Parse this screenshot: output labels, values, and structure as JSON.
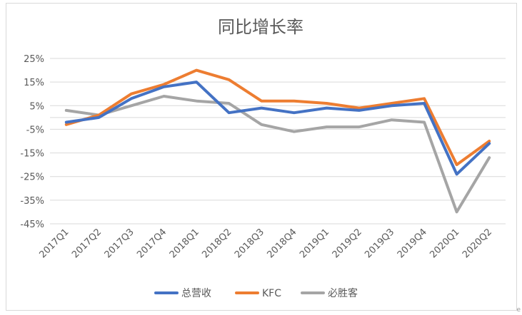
{
  "chart_data": {
    "type": "line",
    "title": "同比增长率",
    "xlabel": "",
    "ylabel": "",
    "categories": [
      "2017Q1",
      "2017Q2",
      "2017Q3",
      "2017Q4",
      "2018Q1",
      "2018Q2",
      "2018Q3",
      "2018Q4",
      "2019Q1",
      "2019Q2",
      "2019Q3",
      "2019Q4",
      "2020Q1",
      "2020Q2"
    ],
    "yticks": [
      "25%",
      "15%",
      "5%",
      "-5%",
      "-15%",
      "-25%",
      "-35%",
      "-45%"
    ],
    "ytick_values": [
      25,
      15,
      5,
      -5,
      -15,
      -25,
      -35,
      -45
    ],
    "ylim": [
      -45,
      25
    ],
    "grid": true,
    "legend_position": "bottom",
    "series": [
      {
        "name": "总营收",
        "color": "#4472c4",
        "values": [
          -2,
          0,
          8,
          13,
          15,
          2,
          4,
          2,
          4,
          3,
          5,
          6,
          -24,
          -11
        ]
      },
      {
        "name": "KFC",
        "color": "#ed7d31",
        "values": [
          -3,
          1,
          10,
          14,
          20,
          16,
          7,
          7,
          6,
          4,
          6,
          8,
          -20,
          -10
        ]
      },
      {
        "name": "必胜客",
        "color": "#a5a5a5",
        "values": [
          3,
          1,
          5,
          9,
          7,
          6,
          -3,
          -6,
          -4,
          -4,
          -1,
          -2,
          -40,
          -17
        ]
      }
    ]
  },
  "corner_mark": "e"
}
